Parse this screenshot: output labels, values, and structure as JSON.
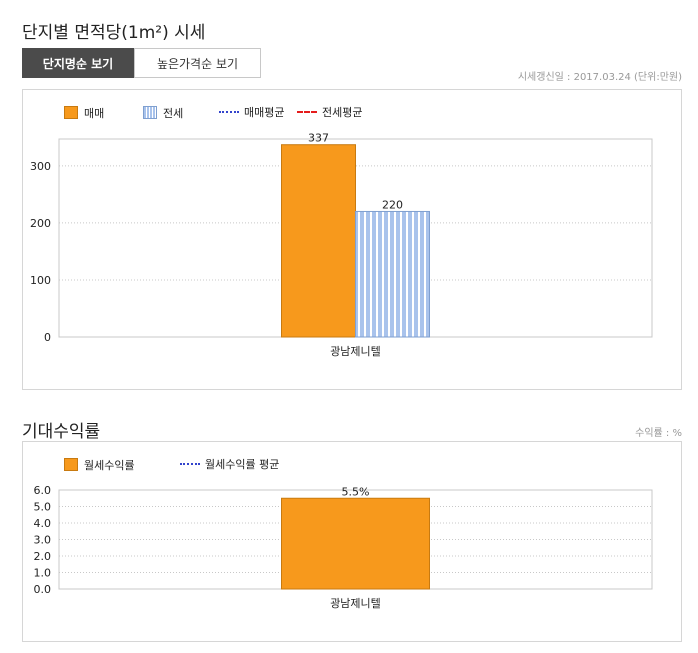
{
  "section1": {
    "title": "단지별 면적당(1m²) 시세",
    "tabs": [
      {
        "label": "단지명순 보기",
        "active": true
      },
      {
        "label": "높은가격순 보기",
        "active": false
      }
    ],
    "meta": "시세갱신일 : 2017.03.24 (단위:만원)",
    "legend": [
      {
        "label": "매매",
        "swatch": "bar",
        "color": "#f7991c"
      },
      {
        "label": "전세",
        "swatch": "striped-bar",
        "color": "#a9c3ec"
      },
      {
        "label": "매매평균",
        "swatch": "dotted-line",
        "color": "#3344cc"
      },
      {
        "label": "전세평균",
        "swatch": "dashed-line",
        "color": "#e51c1c"
      }
    ]
  },
  "section2": {
    "title": "기대수익률",
    "meta": "수익률 : %",
    "legend": [
      {
        "label": "월세수익률",
        "swatch": "bar",
        "color": "#f7991c"
      },
      {
        "label": "월세수익률 평균",
        "swatch": "dotted-line",
        "color": "#3344cc"
      }
    ]
  },
  "chart_data": [
    {
      "type": "bar",
      "categories": [
        "광남제니텔"
      ],
      "series": [
        {
          "name": "매매",
          "values": [
            337
          ],
          "color": "#f7991c"
        },
        {
          "name": "전세",
          "values": [
            220
          ],
          "color": "#a9c3ec"
        }
      ],
      "data_labels": [
        "337",
        "220"
      ],
      "yticks": [
        0,
        100,
        200,
        300
      ],
      "ylim": [
        0,
        347
      ],
      "grid": true
    },
    {
      "type": "bar",
      "categories": [
        "광남제니텔"
      ],
      "series": [
        {
          "name": "월세수익률",
          "values": [
            5.5
          ],
          "color": "#f7991c"
        }
      ],
      "data_labels": [
        "5.5%"
      ],
      "yticks": [
        "0.0",
        "1.0",
        "2.0",
        "3.0",
        "4.0",
        "5.0",
        "6.0"
      ],
      "ylim": [
        0,
        6
      ],
      "grid": true
    }
  ]
}
